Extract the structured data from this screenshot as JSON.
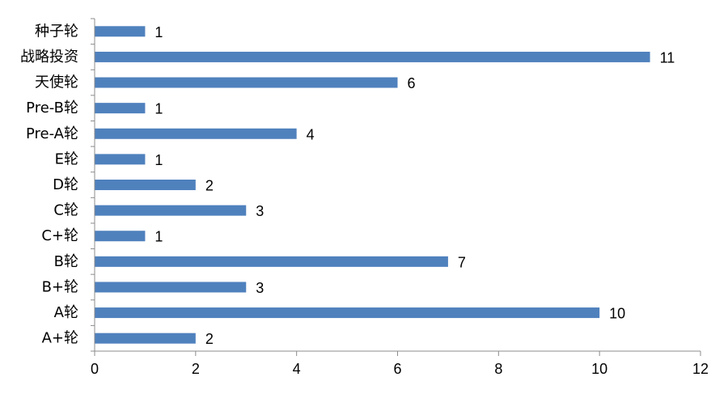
{
  "chart_data": {
    "type": "bar",
    "orientation": "horizontal",
    "categories": [
      "种子轮",
      "战略投资",
      "天使轮",
      "Pre-B轮",
      "Pre-A轮",
      "E轮",
      "D轮",
      "C轮",
      "C+轮",
      "B轮",
      "B+轮",
      "A轮",
      "A+轮"
    ],
    "values": [
      1,
      11,
      6,
      1,
      4,
      1,
      2,
      3,
      1,
      7,
      3,
      10,
      2
    ],
    "data_labels": [
      "1",
      "11",
      "6",
      "1",
      "4",
      "1",
      "2",
      "3",
      "1",
      "7",
      "3",
      "10",
      "2"
    ],
    "xlim": [
      0,
      12
    ],
    "x_ticks": [
      0,
      2,
      4,
      6,
      8,
      10,
      12
    ],
    "x_tick_labels": [
      "0",
      "2",
      "4",
      "6",
      "8",
      "10",
      "12"
    ],
    "title": "",
    "xlabel": "",
    "ylabel": "",
    "grid": false,
    "legend": false,
    "colors": {
      "bar": "#4f81bd",
      "axis": "#8c8c8c",
      "text": "#000000"
    }
  }
}
